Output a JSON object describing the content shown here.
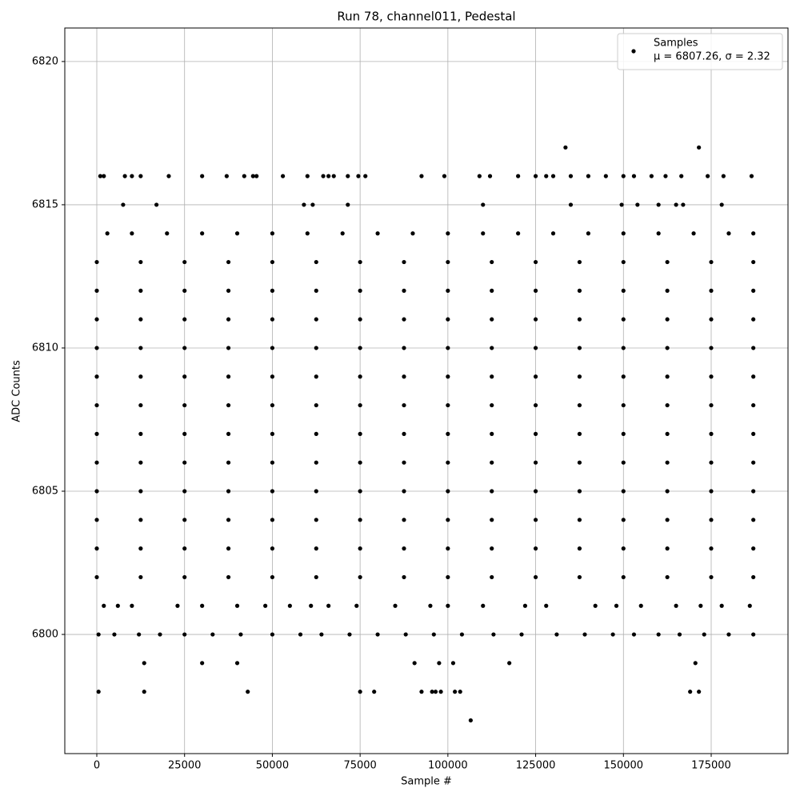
{
  "chart_data": {
    "type": "scatter",
    "title": "Run 78, channel011, Pedestal",
    "x_label": "Sample #",
    "y_label": "ADC Counts",
    "xlim": [
      -9114,
      196875
    ],
    "ylim": [
      6795.84,
      6821.17
    ],
    "xticks": [
      0,
      25000,
      50000,
      75000,
      100000,
      125000,
      150000,
      175000
    ],
    "yticks": [
      6800,
      6805,
      6810,
      6815,
      6820
    ],
    "grid": true,
    "legend": "upper right",
    "legend_note": "μ = 6807.26, σ = 2.32",
    "series": [
      {
        "name": "Samples",
        "color": "#000000",
        "x": [
          133500,
          171500,
          1000,
          2000,
          8000,
          10000,
          12500,
          20500,
          30000,
          37000,
          42000,
          44500,
          45500,
          53000,
          60000,
          64500,
          66000,
          67500,
          71500,
          74500,
          76500,
          92500,
          99000,
          109000,
          112000,
          120000,
          125000,
          128000,
          130000,
          135000,
          140000,
          145000,
          150000,
          153000,
          158000,
          162000,
          166500,
          174000,
          178500,
          186500,
          7500,
          17000,
          59000,
          61500,
          71500,
          110000,
          135000,
          149500,
          154000,
          160000,
          165000,
          167000,
          178000,
          3000,
          10000,
          20000,
          30000,
          40000,
          50000,
          60000,
          70000,
          80000,
          90000,
          100000,
          110000,
          120000,
          130000,
          140000,
          150000,
          160000,
          170000,
          180000,
          187000,
          0,
          12500,
          25000,
          37500,
          50000,
          62500,
          75000,
          87500,
          100000,
          112500,
          125000,
          137500,
          150000,
          162500,
          175000,
          187000,
          0,
          12500,
          25000,
          37500,
          50000,
          62500,
          75000,
          87500,
          100000,
          112500,
          125000,
          137500,
          150000,
          162500,
          175000,
          187000,
          0,
          12500,
          25000,
          37500,
          50000,
          62500,
          75000,
          87500,
          100000,
          112500,
          125000,
          137500,
          150000,
          162500,
          175000,
          187000,
          0,
          12500,
          25000,
          37500,
          50000,
          62500,
          75000,
          87500,
          100000,
          112500,
          125000,
          137500,
          150000,
          162500,
          175000,
          187000,
          0,
          12500,
          25000,
          37500,
          50000,
          62500,
          75000,
          87500,
          100000,
          112500,
          125000,
          137500,
          150000,
          162500,
          175000,
          187000,
          0,
          12500,
          25000,
          37500,
          50000,
          62500,
          75000,
          87500,
          100000,
          112500,
          125000,
          137500,
          150000,
          162500,
          175000,
          187000,
          0,
          12500,
          25000,
          37500,
          50000,
          62500,
          75000,
          87500,
          100000,
          112500,
          125000,
          137500,
          150000,
          162500,
          175000,
          187000,
          0,
          12500,
          25000,
          37500,
          50000,
          62500,
          75000,
          87500,
          100000,
          112500,
          125000,
          137500,
          150000,
          162500,
          175000,
          187000,
          0,
          12500,
          25000,
          37500,
          50000,
          62500,
          75000,
          87500,
          100000,
          112500,
          125000,
          137500,
          150000,
          162500,
          175000,
          187000,
          0,
          12500,
          25000,
          37500,
          50000,
          62500,
          75000,
          87500,
          100000,
          112500,
          125000,
          137500,
          150000,
          162500,
          175000,
          187000,
          0,
          12500,
          25000,
          37500,
          50000,
          62500,
          75000,
          87500,
          100000,
          112500,
          125000,
          137500,
          150000,
          162500,
          175000,
          187000,
          0,
          12500,
          25000,
          37500,
          50000,
          62500,
          75000,
          87500,
          100000,
          112500,
          125000,
          137500,
          150000,
          162500,
          175000,
          187000,
          2000,
          6000,
          10000,
          23000,
          30000,
          40000,
          48000,
          55000,
          61000,
          66000,
          74000,
          85000,
          95000,
          100000,
          110000,
          122000,
          128000,
          142000,
          148000,
          155000,
          165000,
          172000,
          178000,
          186000,
          500,
          5000,
          12000,
          18000,
          25000,
          33000,
          41000,
          50000,
          58000,
          64000,
          72000,
          80000,
          88000,
          96000,
          104000,
          113000,
          121000,
          131000,
          139000,
          147000,
          153000,
          160000,
          166000,
          173000,
          180000,
          187000,
          13500,
          30000,
          40000,
          90500,
          97500,
          101500,
          117500,
          170500,
          500,
          13500,
          43000,
          75000,
          79000,
          92500,
          95500,
          96500,
          98000,
          102000,
          103500,
          169000,
          171500,
          106500
        ],
        "values": [
          6817,
          6817,
          6816,
          6816,
          6816,
          6816,
          6816,
          6816,
          6816,
          6816,
          6816,
          6816,
          6816,
          6816,
          6816,
          6816,
          6816,
          6816,
          6816,
          6816,
          6816,
          6816,
          6816,
          6816,
          6816,
          6816,
          6816,
          6816,
          6816,
          6816,
          6816,
          6816,
          6816,
          6816,
          6816,
          6816,
          6816,
          6816,
          6816,
          6816,
          6815,
          6815,
          6815,
          6815,
          6815,
          6815,
          6815,
          6815,
          6815,
          6815,
          6815,
          6815,
          6815,
          6814,
          6814,
          6814,
          6814,
          6814,
          6814,
          6814,
          6814,
          6814,
          6814,
          6814,
          6814,
          6814,
          6814,
          6814,
          6814,
          6814,
          6814,
          6814,
          6814,
          6813,
          6813,
          6813,
          6813,
          6813,
          6813,
          6813,
          6813,
          6813,
          6813,
          6813,
          6813,
          6813,
          6813,
          6813,
          6813,
          6812,
          6812,
          6812,
          6812,
          6812,
          6812,
          6812,
          6812,
          6812,
          6812,
          6812,
          6812,
          6812,
          6812,
          6812,
          6812,
          6811,
          6811,
          6811,
          6811,
          6811,
          6811,
          6811,
          6811,
          6811,
          6811,
          6811,
          6811,
          6811,
          6811,
          6811,
          6811,
          6810,
          6810,
          6810,
          6810,
          6810,
          6810,
          6810,
          6810,
          6810,
          6810,
          6810,
          6810,
          6810,
          6810,
          6810,
          6810,
          6809,
          6809,
          6809,
          6809,
          6809,
          6809,
          6809,
          6809,
          6809,
          6809,
          6809,
          6809,
          6809,
          6809,
          6809,
          6809,
          6808,
          6808,
          6808,
          6808,
          6808,
          6808,
          6808,
          6808,
          6808,
          6808,
          6808,
          6808,
          6808,
          6808,
          6808,
          6808,
          6807,
          6807,
          6807,
          6807,
          6807,
          6807,
          6807,
          6807,
          6807,
          6807,
          6807,
          6807,
          6807,
          6807,
          6807,
          6807,
          6806,
          6806,
          6806,
          6806,
          6806,
          6806,
          6806,
          6806,
          6806,
          6806,
          6806,
          6806,
          6806,
          6806,
          6806,
          6806,
          6805,
          6805,
          6805,
          6805,
          6805,
          6805,
          6805,
          6805,
          6805,
          6805,
          6805,
          6805,
          6805,
          6805,
          6805,
          6805,
          6804,
          6804,
          6804,
          6804,
          6804,
          6804,
          6804,
          6804,
          6804,
          6804,
          6804,
          6804,
          6804,
          6804,
          6804,
          6804,
          6803,
          6803,
          6803,
          6803,
          6803,
          6803,
          6803,
          6803,
          6803,
          6803,
          6803,
          6803,
          6803,
          6803,
          6803,
          6803,
          6802,
          6802,
          6802,
          6802,
          6802,
          6802,
          6802,
          6802,
          6802,
          6802,
          6802,
          6802,
          6802,
          6802,
          6802,
          6802,
          6801,
          6801,
          6801,
          6801,
          6801,
          6801,
          6801,
          6801,
          6801,
          6801,
          6801,
          6801,
          6801,
          6801,
          6801,
          6801,
          6801,
          6801,
          6801,
          6801,
          6801,
          6801,
          6801,
          6801,
          6800,
          6800,
          6800,
          6800,
          6800,
          6800,
          6800,
          6800,
          6800,
          6800,
          6800,
          6800,
          6800,
          6800,
          6800,
          6800,
          6800,
          6800,
          6800,
          6800,
          6800,
          6800,
          6800,
          6800,
          6800,
          6800,
          6799,
          6799,
          6799,
          6799,
          6799,
          6799,
          6799,
          6799,
          6798,
          6798,
          6798,
          6798,
          6798,
          6798,
          6798,
          6798,
          6798,
          6798,
          6798,
          6798,
          6798,
          6797
        ]
      }
    ]
  }
}
